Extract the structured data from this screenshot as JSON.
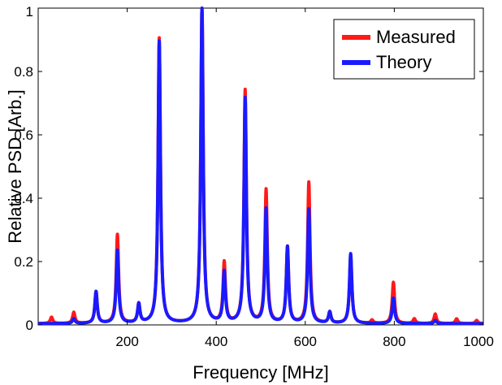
{
  "chart_data": {
    "type": "line",
    "xlabel": "Frequency [MHz]",
    "ylabel": "Relative PSD [Arb.]",
    "xlim": [
      0,
      1000
    ],
    "ylim": [
      0,
      1
    ],
    "xticks": [
      200,
      400,
      600,
      800,
      1000
    ],
    "yticks": [
      0,
      0.2,
      0.4,
      0.6,
      0.8,
      1
    ],
    "xtick_labels": [
      "200",
      "400",
      "600",
      "800",
      "1000"
    ],
    "ytick_labels": [
      "0",
      "0.2",
      "0.4",
      "0.6",
      "0.8",
      "1"
    ],
    "grid": false,
    "legend_position": "top-right",
    "series": [
      {
        "name": "Measured",
        "color": "#ff1a1a",
        "peaks": [
          [
            30,
            0.02
          ],
          [
            80,
            0.035
          ],
          [
            130,
            0.1
          ],
          [
            178,
            0.28
          ],
          [
            226,
            0.06
          ],
          [
            272,
            0.9
          ],
          [
            368,
            1.0
          ],
          [
            418,
            0.19
          ],
          [
            465,
            0.735
          ],
          [
            512,
            0.42
          ],
          [
            560,
            0.24
          ],
          [
            608,
            0.445
          ],
          [
            655,
            0.035
          ],
          [
            702,
            0.215
          ],
          [
            750,
            0.01
          ],
          [
            798,
            0.13
          ],
          [
            845,
            0.015
          ],
          [
            892,
            0.03
          ],
          [
            940,
            0.015
          ],
          [
            985,
            0.01
          ]
        ]
      },
      {
        "name": "Theory",
        "color": "#1a1aff",
        "peaks": [
          [
            80,
            0.015
          ],
          [
            130,
            0.1
          ],
          [
            178,
            0.23
          ],
          [
            226,
            0.06
          ],
          [
            272,
            0.89
          ],
          [
            368,
            1.0
          ],
          [
            418,
            0.16
          ],
          [
            465,
            0.71
          ],
          [
            512,
            0.36
          ],
          [
            560,
            0.24
          ],
          [
            608,
            0.36
          ],
          [
            655,
            0.035
          ],
          [
            702,
            0.22
          ],
          [
            798,
            0.08
          ],
          [
            892,
            0.01
          ]
        ]
      }
    ]
  }
}
